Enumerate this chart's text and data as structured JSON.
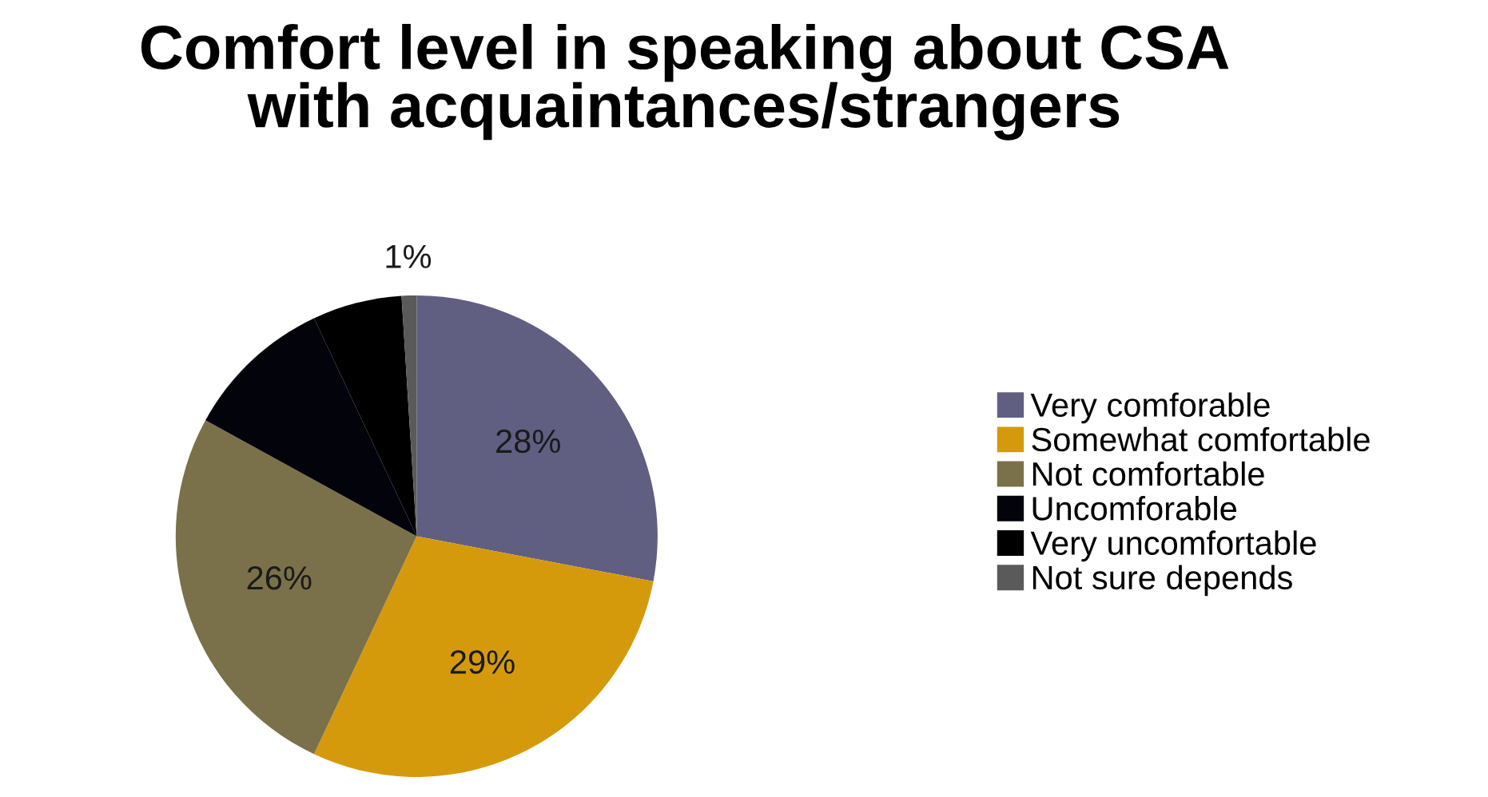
{
  "chart_data": {
    "type": "pie",
    "title": "Comfort level in speaking about CSA\nwith acquaintances/strangers",
    "categories": [
      "Very comforable",
      "Somewhat comfortable",
      "Not comfortable",
      "Uncomforable",
      "Very uncomfortable",
      "Not sure depends"
    ],
    "values": [
      28,
      29,
      26,
      10,
      6,
      1
    ],
    "colors": [
      "#605f82",
      "#d59a0c",
      "#7a714a",
      "#03030c",
      "#000000",
      "#5a5a5a"
    ],
    "value_labels": [
      "28%",
      "29%",
      "26%",
      null,
      null,
      "1%"
    ],
    "legend": "right"
  }
}
